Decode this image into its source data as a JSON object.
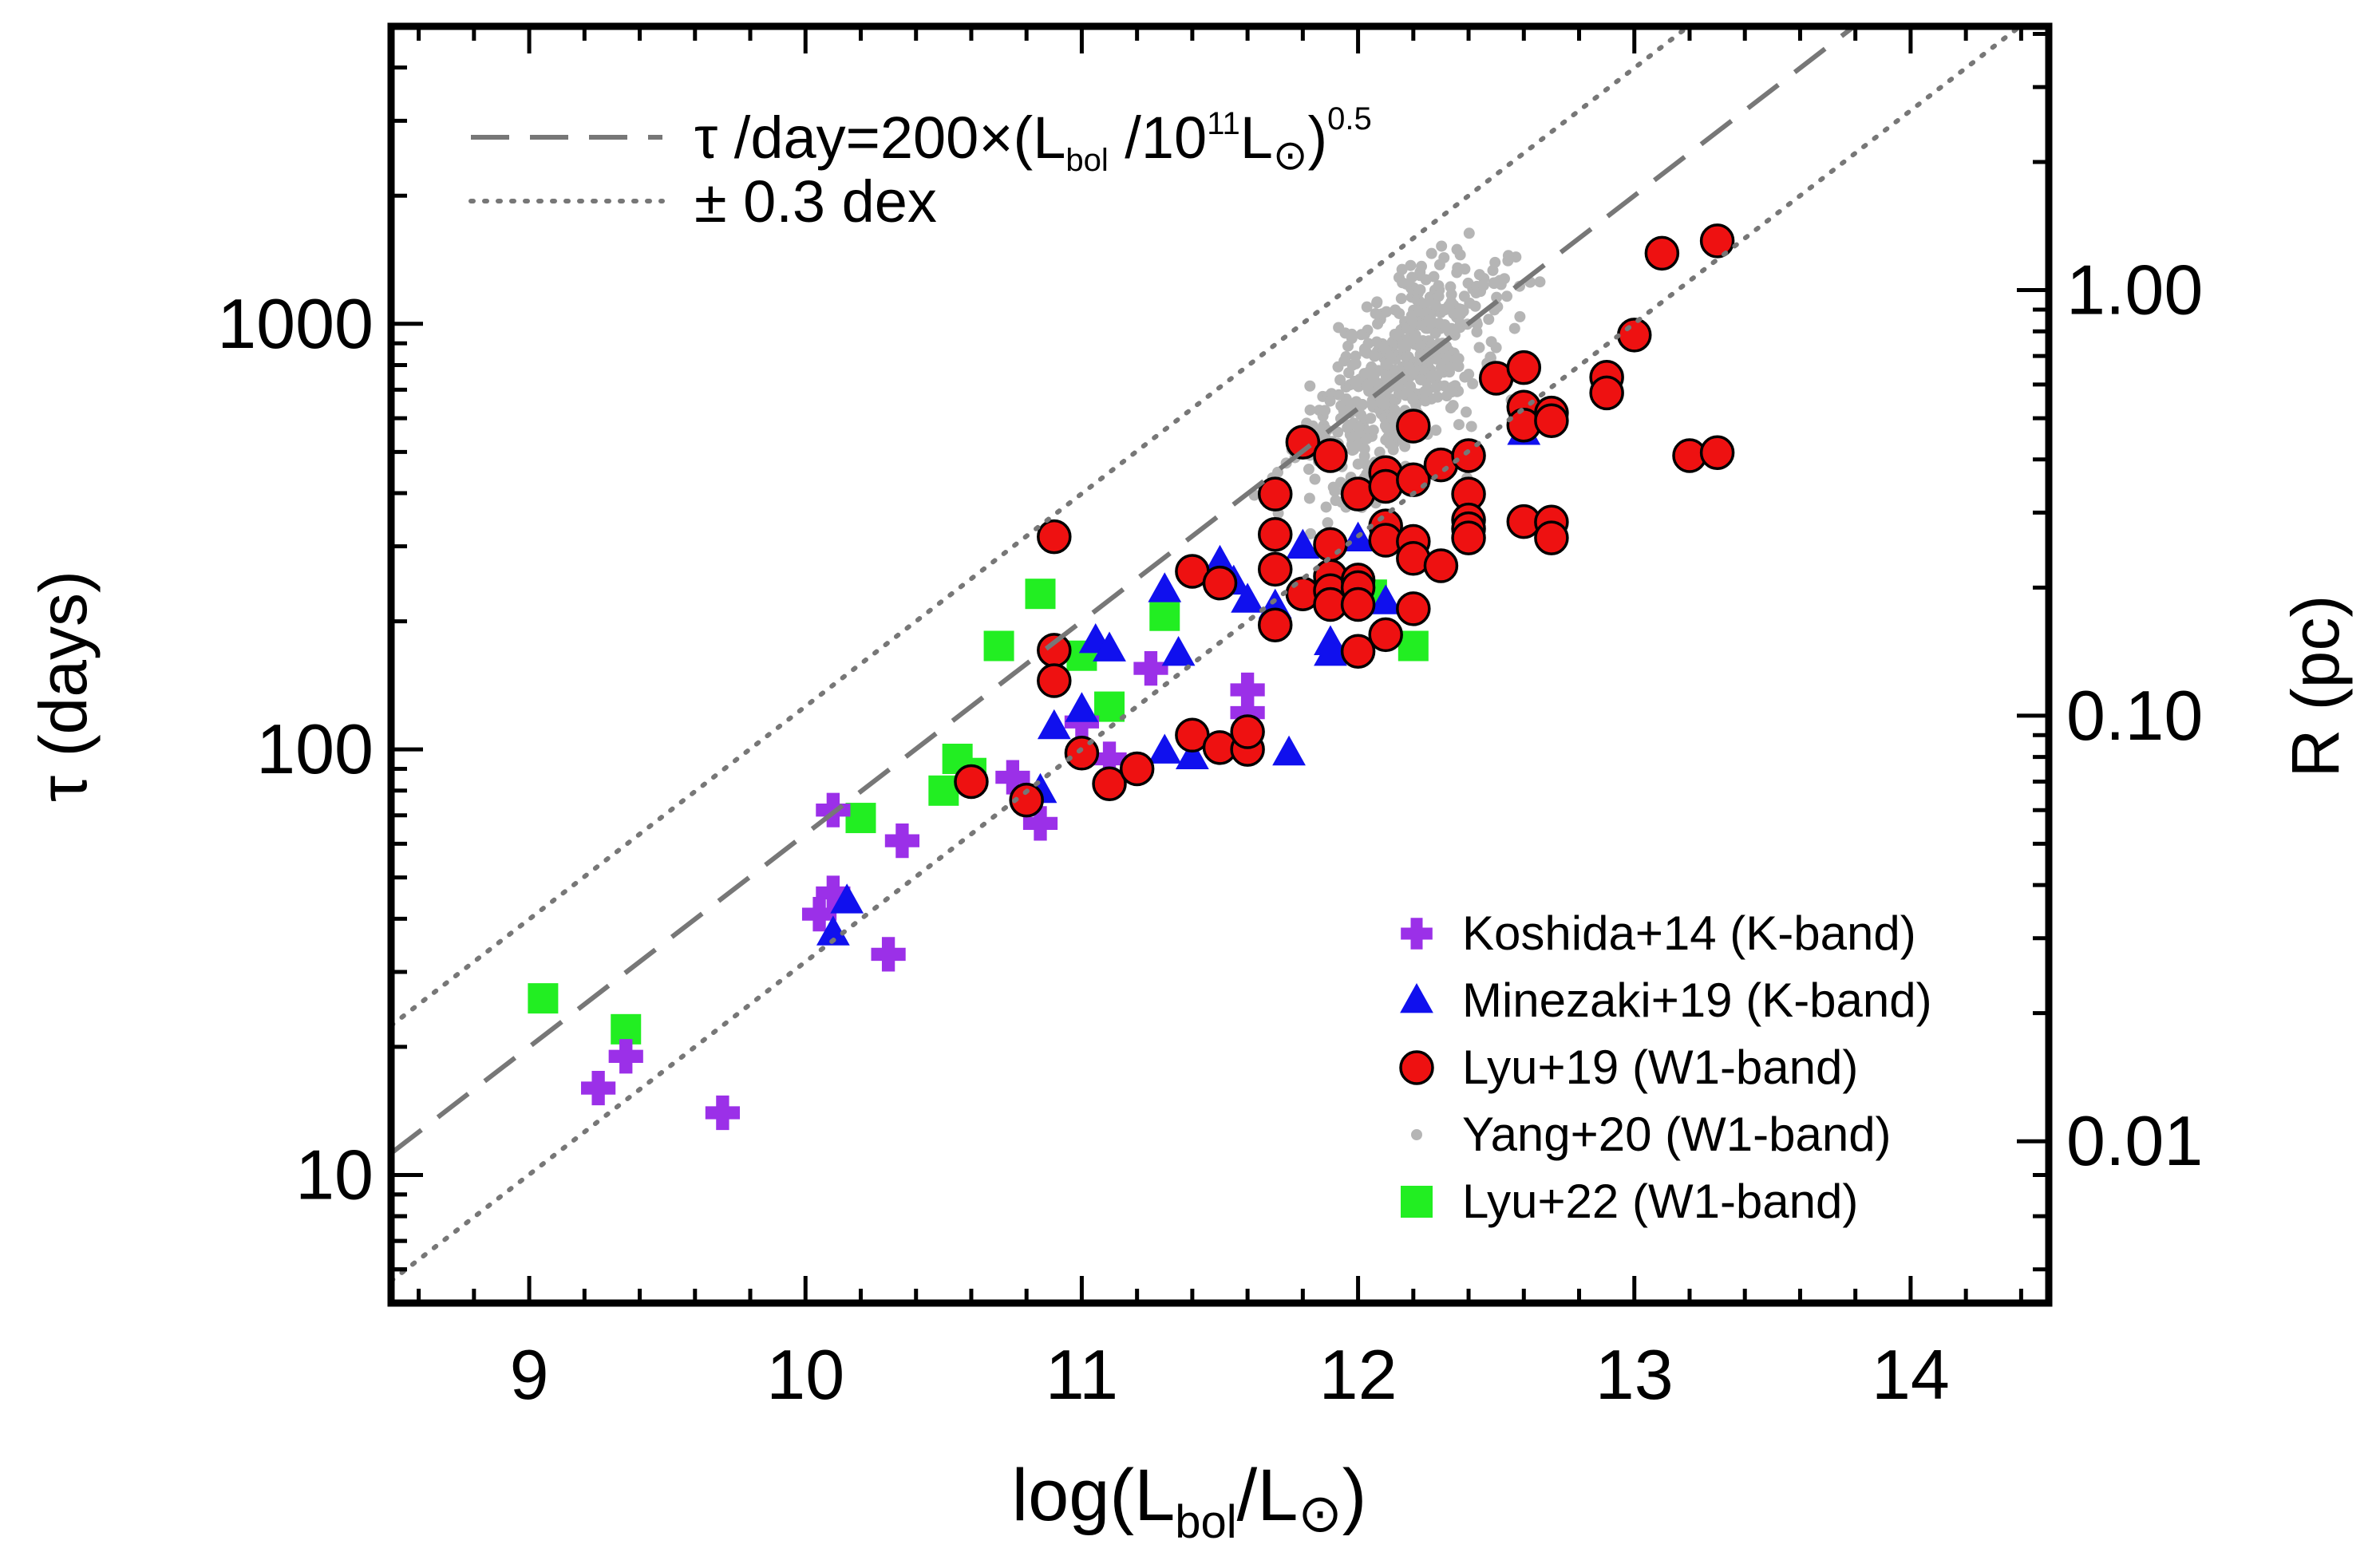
{
  "chart_data": {
    "type": "scatter",
    "xlabel": "log(L",
    "xlabel_sub": "bol",
    "xlabel_mid": "/L",
    "xlabel_sun": "⊙",
    "xlabel_end": ")",
    "ylabel": "τ (days)",
    "ylabel_right": "R (pc)",
    "xlim": [
      8.5,
      14.5
    ],
    "ylim": [
      5,
      5000
    ],
    "y_scale": "log",
    "x_ticks": [
      "9",
      "10",
      "11",
      "12",
      "13",
      "14"
    ],
    "x_tick_values": [
      9,
      10,
      11,
      12,
      13,
      14
    ],
    "y_ticks": [
      "10",
      "100",
      "1000"
    ],
    "y_tick_values": [
      10,
      100,
      1000
    ],
    "right_ticks": [
      "0.01",
      "0.10",
      "1.00"
    ],
    "right_tick_tau_values": [
      12,
      120,
      1200
    ],
    "grid": false,
    "legend_top": {
      "position": "top-left",
      "dashed_label": "τ /day=200×(L",
      "dashed_label_sub": "bol",
      "dashed_label_mid": " /10",
      "dashed_label_sup": "11",
      "dashed_label_mid2": "L",
      "dashed_label_sun": "⊙",
      "dashed_label_end": ")",
      "dashed_label_exp": "0.5",
      "dotted_label": "± 0.3 dex"
    },
    "relation": {
      "normalization": 200,
      "pivot_log_L": 11,
      "slope": 0.5,
      "scatter_dex": 0.3
    },
    "series": [
      {
        "name": "Koshida+14 (K-band)",
        "marker": "plus",
        "color": "#9b30e8",
        "points": [
          [
            9.25,
            16
          ],
          [
            9.35,
            19
          ],
          [
            9.7,
            14
          ],
          [
            10.05,
            41
          ],
          [
            10.1,
            46
          ],
          [
            10.1,
            72
          ],
          [
            10.3,
            33
          ],
          [
            10.35,
            61
          ],
          [
            10.75,
            86
          ],
          [
            10.85,
            67
          ],
          [
            11.0,
            116
          ],
          [
            11.1,
            95
          ],
          [
            11.25,
            155
          ],
          [
            11.6,
            138
          ],
          [
            11.6,
            122
          ]
        ]
      },
      {
        "name": "Minezaki+19 (K-band)",
        "marker": "triangle",
        "color": "#1010ee",
        "points": [
          [
            10.1,
            37
          ],
          [
            10.15,
            44
          ],
          [
            10.85,
            80
          ],
          [
            10.9,
            113
          ],
          [
            11.0,
            124
          ],
          [
            11.05,
            180
          ],
          [
            11.1,
            172
          ],
          [
            11.3,
            99
          ],
          [
            11.4,
            96
          ],
          [
            11.3,
            237
          ],
          [
            11.35,
            168
          ],
          [
            11.5,
            275
          ],
          [
            11.6,
            224
          ],
          [
            11.7,
            217
          ],
          [
            11.75,
            98
          ],
          [
            11.9,
            178
          ],
          [
            11.9,
            168
          ],
          [
            11.8,
            300
          ],
          [
            12.0,
            312
          ],
          [
            12.1,
            222
          ],
          [
            12.6,
            555
          ],
          [
            11.55,
            247
          ]
        ]
      },
      {
        "name": "Lyu+19 (W1-band)",
        "marker": "circle",
        "color": "#ee1111",
        "points": [
          [
            10.8,
            76
          ],
          [
            10.9,
            316
          ],
          [
            10.9,
            171
          ],
          [
            10.9,
            145
          ],
          [
            11.0,
            98
          ],
          [
            11.1,
            83
          ],
          [
            11.2,
            90
          ],
          [
            11.4,
            108
          ],
          [
            11.4,
            262
          ],
          [
            11.5,
            246
          ],
          [
            11.5,
            101
          ],
          [
            11.6,
            100
          ],
          [
            11.6,
            110
          ],
          [
            11.7,
            398
          ],
          [
            11.7,
            320
          ],
          [
            11.7,
            265
          ],
          [
            11.7,
            196
          ],
          [
            11.8,
            527
          ],
          [
            11.8,
            232
          ],
          [
            11.9,
            490
          ],
          [
            11.9,
            303
          ],
          [
            11.9,
            255
          ],
          [
            11.9,
            236
          ],
          [
            11.9,
            219
          ],
          [
            12.0,
            250
          ],
          [
            12.0,
            240
          ],
          [
            12.0,
            219
          ],
          [
            12.0,
            170
          ],
          [
            12.0,
            398
          ],
          [
            12.1,
            447
          ],
          [
            12.1,
            415
          ],
          [
            12.1,
            335
          ],
          [
            12.1,
            310
          ],
          [
            12.1,
            186
          ],
          [
            12.2,
            575
          ],
          [
            12.2,
            430
          ],
          [
            12.2,
            308
          ],
          [
            12.2,
            281
          ],
          [
            12.2,
            214
          ],
          [
            12.3,
            466
          ],
          [
            12.3,
            270
          ],
          [
            12.4,
            490
          ],
          [
            12.4,
            398
          ],
          [
            12.4,
            346
          ],
          [
            12.4,
            330
          ],
          [
            12.4,
            314
          ],
          [
            12.5,
            745
          ],
          [
            12.6,
            789
          ],
          [
            12.6,
            637
          ],
          [
            12.6,
            578
          ],
          [
            12.6,
            343
          ],
          [
            12.7,
            617
          ],
          [
            12.7,
            592
          ],
          [
            12.7,
            342
          ],
          [
            12.7,
            314
          ],
          [
            12.9,
            749
          ],
          [
            12.9,
            688
          ],
          [
            13.0,
            941
          ],
          [
            13.1,
            1465
          ],
          [
            13.2,
            490
          ],
          [
            13.3,
            498
          ],
          [
            13.3,
            1566
          ],
          [
            10.6,
            84
          ]
        ]
      },
      {
        "name": "Lyu+22 (W1-band)",
        "marker": "square",
        "color": "#22ee22",
        "points": [
          [
            9.05,
            26
          ],
          [
            9.35,
            22
          ],
          [
            10.2,
            69
          ],
          [
            10.5,
            80
          ],
          [
            10.55,
            95
          ],
          [
            10.6,
            88
          ],
          [
            10.7,
            175
          ],
          [
            10.85,
            232
          ],
          [
            11.0,
            166
          ],
          [
            11.1,
            126
          ],
          [
            11.3,
            206
          ],
          [
            12.05,
            231
          ],
          [
            12.2,
            175
          ]
        ]
      },
      {
        "name": "Yang+20 (W1-band)",
        "marker": "dot",
        "color": "#b5b5b5",
        "count": 550,
        "x_center": 12.15,
        "x_spread": 0.55,
        "log_tau_scatter": 0.17
      }
    ],
    "legend": {
      "position": "bottom-right",
      "order": [
        "Koshida+14 (K-band)",
        "Minezaki+19 (K-band)",
        "Lyu+19 (W1-band)",
        "Yang+20 (W1-band)",
        "Lyu+22 (W1-band)"
      ]
    }
  }
}
